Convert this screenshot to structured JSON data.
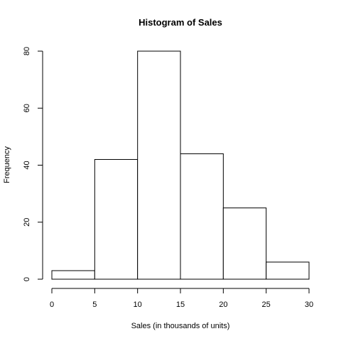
{
  "chart_data": {
    "type": "bar",
    "title": "Histogram of Sales",
    "xlabel": "Sales (in thousands of units)",
    "ylabel": "Frequency",
    "bins": [
      {
        "start": 0,
        "end": 5,
        "count": 3
      },
      {
        "start": 5,
        "end": 10,
        "count": 42
      },
      {
        "start": 10,
        "end": 15,
        "count": 80
      },
      {
        "start": 15,
        "end": 20,
        "count": 44
      },
      {
        "start": 20,
        "end": 25,
        "count": 25
      },
      {
        "start": 25,
        "end": 30,
        "count": 6
      }
    ],
    "xlim": [
      0,
      30
    ],
    "ylim": [
      0,
      80
    ],
    "xticks": [
      "0",
      "5",
      "10",
      "15",
      "20",
      "25",
      "30"
    ],
    "yticks": [
      "0",
      "20",
      "40",
      "60",
      "80"
    ],
    "grid": false,
    "bar_fill": "#ffffff",
    "bar_stroke": "#000000"
  }
}
